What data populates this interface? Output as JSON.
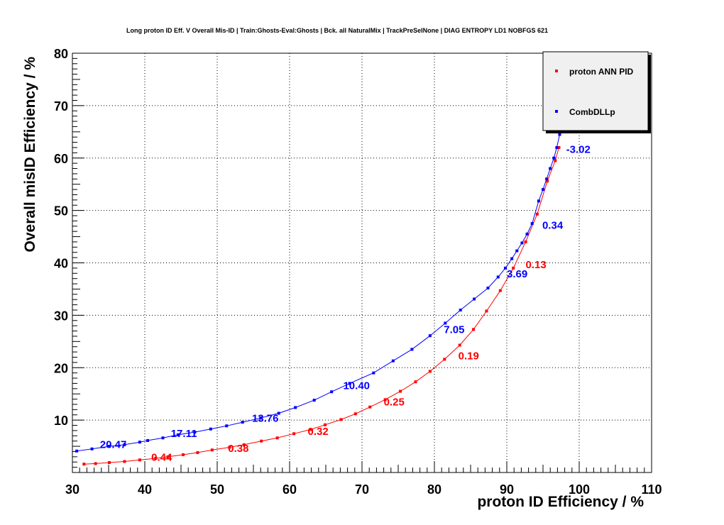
{
  "chart_data": {
    "type": "scatter",
    "title": "Long proton ID Eff. V Overall Mis-ID | Train:Ghosts-Eval:Ghosts | Bck. all NaturalMix | TrackPreSelNone | DIAG ENTROPY LD1 NOBFGS 621",
    "xlabel": "proton ID Efficiency / %",
    "ylabel": "Overall misID Efficiency / %",
    "xlim": [
      30,
      110
    ],
    "ylim": [
      0,
      80
    ],
    "xticks": [
      30,
      40,
      50,
      60,
      70,
      80,
      90,
      100,
      110
    ],
    "yticks": [
      10,
      20,
      30,
      40,
      50,
      60,
      70,
      80
    ],
    "grid": true,
    "legend_position": "top-right",
    "series": [
      {
        "name": "proton ANN PID",
        "color": "#ff0000",
        "x": [
          31.6,
          33.2,
          35.1,
          37.2,
          39.3,
          41.5,
          43.2,
          45.3,
          47.3,
          49.3,
          51.7,
          53.7,
          56.1,
          58.3,
          60.6,
          62.9,
          64.9,
          67.1,
          69.1,
          71.1,
          73.2,
          75.3,
          77.4,
          79.4,
          81.4,
          83.5,
          85.4,
          87.2,
          89.1,
          90.9,
          92.6,
          94.2,
          95.6,
          96.7,
          97.2
        ],
        "y": [
          1.6,
          1.7,
          1.9,
          2.1,
          2.4,
          2.7,
          3.0,
          3.4,
          3.8,
          4.3,
          4.8,
          5.3,
          6.0,
          6.6,
          7.4,
          8.2,
          9.1,
          10.1,
          11.2,
          12.5,
          13.9,
          15.5,
          17.3,
          19.3,
          21.6,
          24.3,
          27.3,
          30.8,
          34.7,
          39.0,
          44.0,
          49.3,
          55.6,
          59.5,
          62.0
        ]
      },
      {
        "name": "CombDLLp",
        "color": "#0000ff",
        "x": [
          30.6,
          32.7,
          35.1,
          37.2,
          39.3,
          40.4,
          42.5,
          44.6,
          46.9,
          49.1,
          51.3,
          53.5,
          56.0,
          58.5,
          60.8,
          63.4,
          65.8,
          68.3,
          71.6,
          74.3,
          76.9,
          79.4,
          81.5,
          83.6,
          85.5,
          87.4,
          88.8,
          89.8,
          90.7,
          91.4,
          92.1,
          92.8,
          93.5,
          94.4,
          95.0,
          95.5,
          96.0,
          96.5,
          96.9,
          97.3
        ],
        "y": [
          4.1,
          4.5,
          5.0,
          5.3,
          5.8,
          6.1,
          6.6,
          7.2,
          7.7,
          8.3,
          8.9,
          9.6,
          10.4,
          11.3,
          12.4,
          13.8,
          15.4,
          17.0,
          19.0,
          21.3,
          23.5,
          26.1,
          28.5,
          31.0,
          33.1,
          35.2,
          37.3,
          39.0,
          40.8,
          42.3,
          43.8,
          45.5,
          47.5,
          51.8,
          54.0,
          56.0,
          58.0,
          60.0,
          62.0,
          64.5
        ]
      }
    ],
    "annotations": [
      {
        "series": "CombDLLp",
        "text": "20.47",
        "x": 33.8,
        "y": 4.7
      },
      {
        "series": "CombDLLp",
        "text": "17.11",
        "x": 43.6,
        "y": 6.8
      },
      {
        "series": "CombDLLp",
        "text": "13.76",
        "x": 54.8,
        "y": 9.7
      },
      {
        "series": "CombDLLp",
        "text": "10.40",
        "x": 67.4,
        "y": 15.9
      },
      {
        "series": "CombDLLp",
        "text": "7.05",
        "x": 81.3,
        "y": 26.6
      },
      {
        "series": "CombDLLp",
        "text": "3.69",
        "x": 90.0,
        "y": 37.2
      },
      {
        "series": "CombDLLp",
        "text": "0.34",
        "x": 94.9,
        "y": 46.5
      },
      {
        "series": "CombDLLp",
        "text": "-3.02",
        "x": 98.2,
        "y": 61.0
      },
      {
        "series": "proton ANN PID",
        "text": "0.44",
        "x": 40.9,
        "y": 2.2
      },
      {
        "series": "proton ANN PID",
        "text": "0.38",
        "x": 51.5,
        "y": 3.9
      },
      {
        "series": "proton ANN PID",
        "text": "0.32",
        "x": 62.5,
        "y": 7.2
      },
      {
        "series": "proton ANN PID",
        "text": "0.25",
        "x": 73.0,
        "y": 12.8
      },
      {
        "series": "proton ANN PID",
        "text": "0.19",
        "x": 83.3,
        "y": 21.6
      },
      {
        "series": "proton ANN PID",
        "text": "0.13",
        "x": 92.6,
        "y": 39.0
      }
    ]
  }
}
